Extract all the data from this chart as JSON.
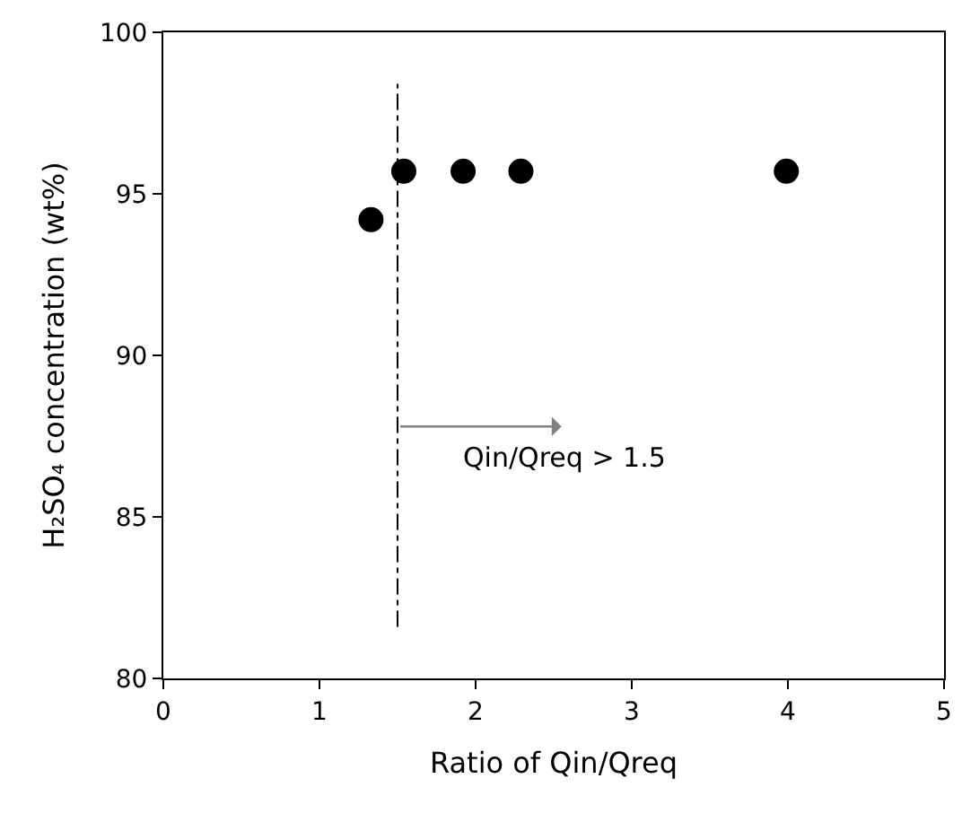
{
  "chart_data": {
    "type": "scatter",
    "xlabel": "Ratio of Qin/Qreq",
    "ylabel": "H₂SO₄ concentration (wt%)",
    "x": [
      1.33,
      1.54,
      1.92,
      2.29,
      3.99
    ],
    "series": [
      {
        "color": "#000000",
        "values": [
          94.2,
          95.7,
          95.7,
          95.7,
          95.7
        ]
      }
    ],
    "marker": "circle",
    "xlim": [
      0,
      5
    ],
    "xticks": [
      0,
      1,
      2,
      3,
      4,
      5
    ],
    "ylim": [
      80,
      100
    ],
    "yticks": [
      80,
      85,
      90,
      95,
      100
    ],
    "ref_lines": [
      {
        "axis": "x",
        "value": 1.5,
        "color": "#000000",
        "line_style": "dashdot"
      }
    ],
    "annotations": [
      "Qin/Qreq > 1.5"
    ]
  }
}
